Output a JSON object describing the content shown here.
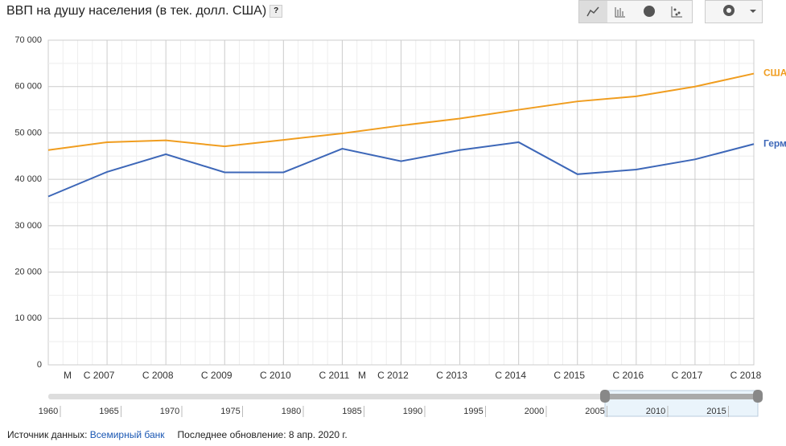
{
  "title": "ВВП на душу населения (в тек. долл. США)",
  "help": "?",
  "chart_data": {
    "type": "line",
    "categories": [
      null,
      "С 2007",
      "С 2008",
      "С 2009",
      "С 2010",
      "С 2011",
      "С 2012",
      "С 2013",
      "С 2014",
      "С 2015",
      "С 2016",
      "С 2017",
      "С 2018"
    ],
    "annotations": [
      "М",
      "М"
    ],
    "series": [
      {
        "name": "США",
        "color": "#f09d1f",
        "values": [
          46300,
          48000,
          48400,
          47100,
          48500,
          49900,
          51600,
          53100,
          55000,
          56800,
          57900,
          60000,
          62800
        ]
      },
      {
        "name": "Герм",
        "color": "#3d67b8",
        "values": [
          36300,
          41600,
          45400,
          41500,
          41500,
          46600,
          43900,
          46300,
          48000,
          41100,
          42100,
          44300,
          47600
        ]
      }
    ],
    "ylim": [
      0,
      70000
    ],
    "yticks": [
      0,
      {
        "value": 10000,
        "label": "10 000"
      },
      {
        "value": 20000,
        "label": "20 000"
      },
      {
        "value": 30000,
        "label": "30 000"
      },
      {
        "value": 40000,
        "label": "40 000"
      },
      {
        "value": 50000,
        "label": "50 000"
      },
      {
        "value": 60000,
        "label": "60 000"
      },
      {
        "value": 70000,
        "label": "70 000"
      }
    ],
    "grid": true
  },
  "timeline": {
    "labels": [
      "1960",
      "1965",
      "1970",
      "1975",
      "1980",
      "1985",
      "1990",
      "1995",
      "2000",
      "2005",
      "2010",
      "2015"
    ]
  },
  "footer": {
    "source_label": "Источник данных:",
    "source": "Всемирный банк",
    "updated": "Последнее обновление: 8 апр. 2020 г."
  }
}
